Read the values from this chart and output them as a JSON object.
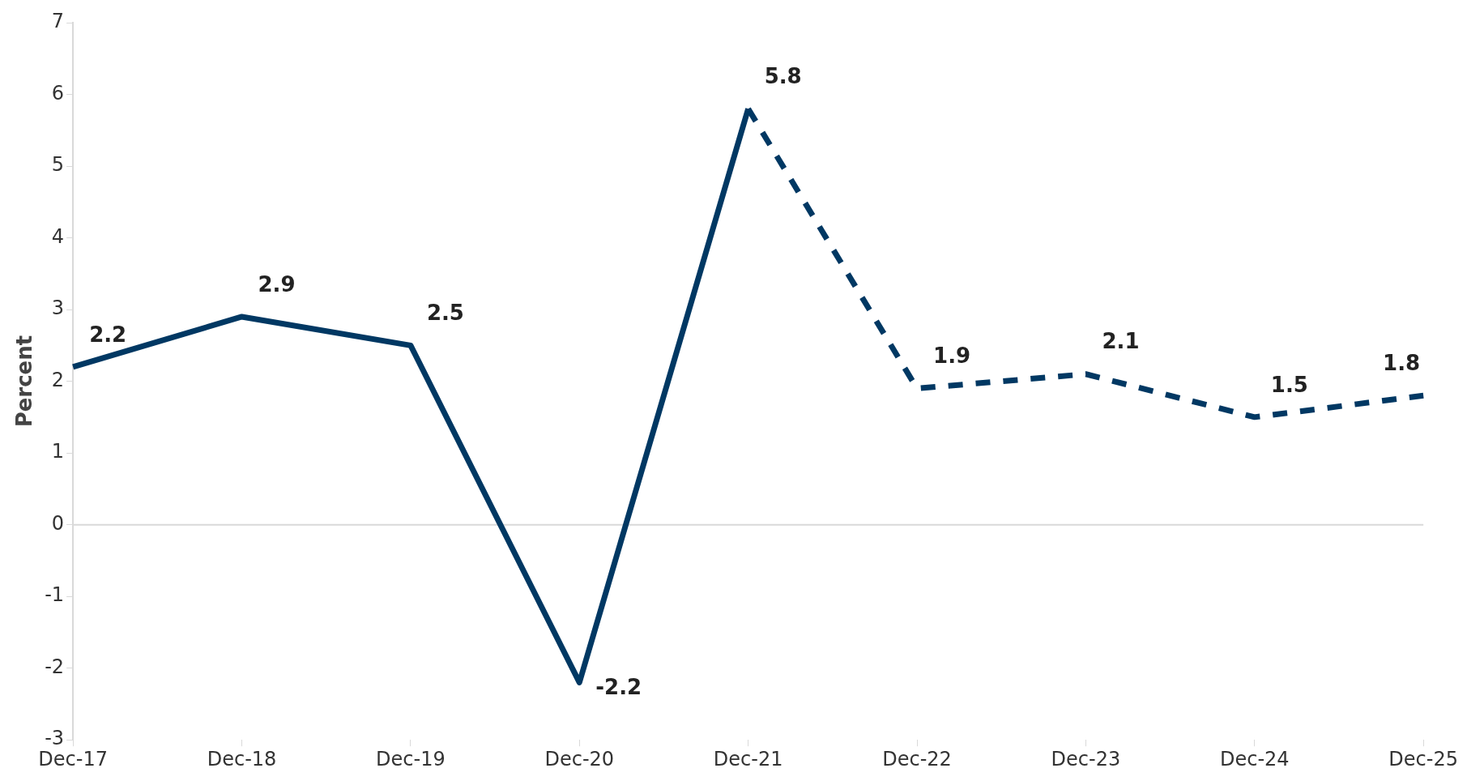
{
  "chart_data": {
    "type": "line",
    "ylabel": "Percent",
    "categories": [
      "Dec-17",
      "Dec-18",
      "Dec-19",
      "Dec-20",
      "Dec-21",
      "Dec-22",
      "Dec-23",
      "Dec-24",
      "Dec-25"
    ],
    "series": [
      {
        "color": "#003863",
        "line_style": "solid",
        "values": [
          2.2,
          2.9,
          2.5,
          -2.2,
          5.8,
          null,
          null,
          null,
          null
        ],
        "value_labels": [
          "2.2",
          "2.9",
          "2.5",
          "-2.2",
          "5.8",
          null,
          null,
          null,
          null
        ]
      },
      {
        "color": "#003863",
        "line_style": "dashed",
        "values": [
          null,
          null,
          null,
          null,
          5.8,
          1.9,
          2.1,
          1.5,
          1.8
        ],
        "value_labels": [
          null,
          null,
          null,
          null,
          null,
          "1.9",
          "2.1",
          "1.5",
          "1.8"
        ]
      }
    ],
    "ylim": [
      -3,
      7
    ],
    "yticks": [
      -3,
      -2,
      -1,
      0,
      1,
      2,
      3,
      4,
      5,
      6,
      7
    ],
    "grid": false,
    "legend": false,
    "marker": "none",
    "ref_lines": [
      {
        "axis": "y",
        "value": 0,
        "color": "#d9d9d9"
      }
    ]
  }
}
